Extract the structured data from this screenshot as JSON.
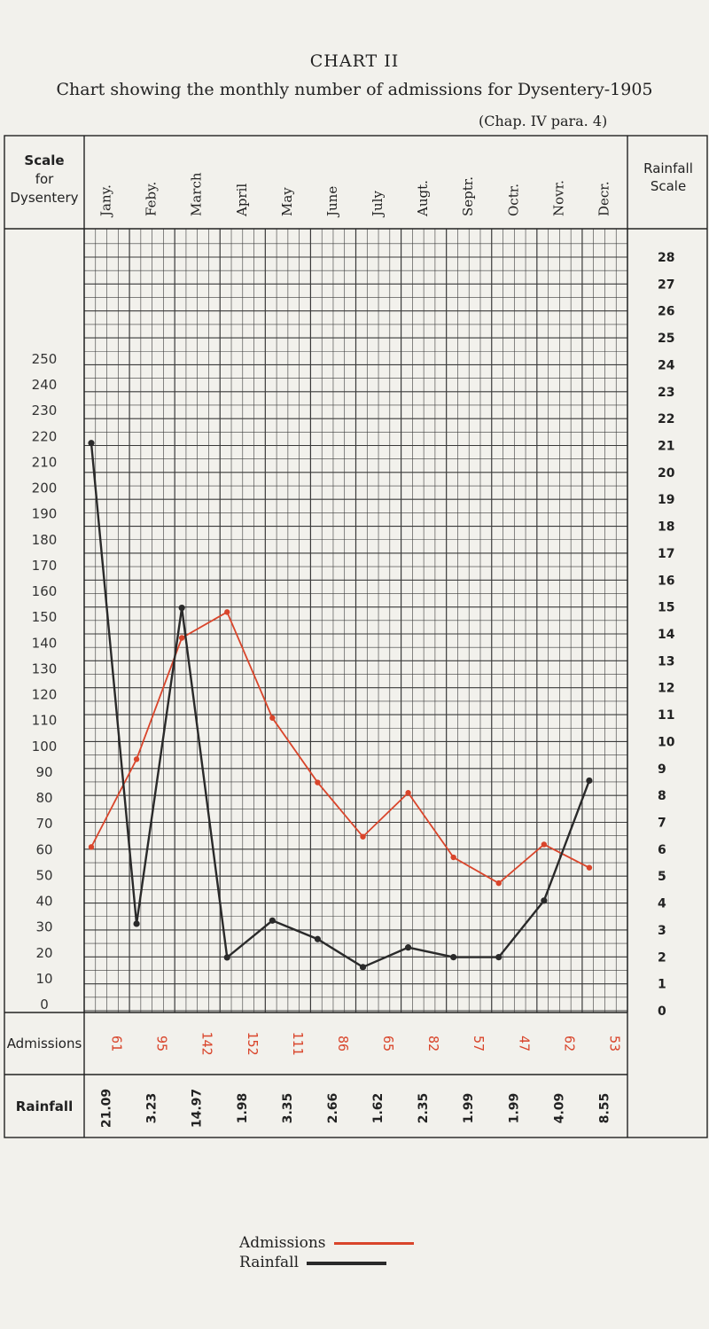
{
  "heading": "CHART II",
  "subtitle": "Chart showing the monthly number of admissions for Dysentery-1905",
  "reference": "(Chap. IV para. 4)",
  "left_header": [
    "Scale",
    "for",
    "Dysentery"
  ],
  "right_header": [
    "Rainfall",
    "Scale"
  ],
  "row_labels": {
    "admissions": "Admissions",
    "rainfall": "Rainfall"
  },
  "legend": {
    "admissions": "Admissions",
    "rainfall": "Rainfall"
  },
  "colors": {
    "admissions": "#d9452b",
    "rainfall": "#2a2a2a",
    "grid": "#3a3a3a",
    "paper": "#f2f1ec"
  },
  "chart_data": {
    "type": "line",
    "categories": [
      "Jany.",
      "Feby.",
      "March",
      "April",
      "May",
      "June",
      "July",
      "Augt.",
      "Septr.",
      "Octr.",
      "Novr.",
      "Decr."
    ],
    "left_axis": {
      "label": "Scale for Dysentery",
      "range": [
        0,
        250
      ],
      "ticks": [
        0,
        10,
        20,
        30,
        40,
        50,
        60,
        70,
        80,
        90,
        100,
        110,
        120,
        130,
        140,
        150,
        160,
        170,
        180,
        190,
        200,
        210,
        220,
        230,
        240,
        250
      ]
    },
    "right_axis": {
      "label": "Rainfall Scale",
      "range": [
        0,
        28
      ],
      "ticks": [
        0,
        1,
        2,
        3,
        4,
        5,
        6,
        7,
        8,
        9,
        10,
        11,
        12,
        13,
        14,
        15,
        16,
        17,
        18,
        19,
        20,
        21,
        22,
        23,
        24,
        25,
        26,
        27,
        28
      ]
    },
    "admissions_labels": [
      "61",
      "95",
      "142",
      "152",
      "111",
      "86",
      "65",
      "82",
      "57",
      "47",
      "62",
      "53"
    ],
    "rainfall_labels": [
      "21.09",
      "3.23",
      "14.97",
      "1.98",
      "3.35",
      "2.66",
      "1.62",
      "2.35",
      "1.99",
      "1.99",
      "4.09",
      "8.55"
    ],
    "series": [
      {
        "name": "Admissions",
        "axis": "left",
        "points": [
          {
            "x": "Jany.",
            "sub": 0,
            "y": 61
          },
          {
            "x": "Feby.",
            "sub": 0,
            "y": 95
          },
          {
            "x": "March",
            "sub": 0,
            "y": 142
          },
          {
            "x": "April",
            "sub": 0,
            "y": 152
          },
          {
            "x": "May",
            "sub": 0,
            "y": 111
          },
          {
            "x": "June",
            "sub": 0,
            "y": 86
          },
          {
            "x": "July",
            "sub": 0,
            "y": 65
          },
          {
            "x": "Augt.",
            "sub": 0,
            "y": 82
          },
          {
            "x": "Septr.",
            "sub": 0,
            "y": 57
          },
          {
            "x": "Octr.",
            "sub": 0,
            "y": 47
          },
          {
            "x": "Novr.",
            "sub": 0,
            "y": 62
          },
          {
            "x": "Decr.",
            "sub": 0,
            "y": 53
          }
        ]
      },
      {
        "name": "Rainfall",
        "axis": "right",
        "points": [
          {
            "x": "Jany.",
            "sub": 0,
            "y": 21.09
          },
          {
            "x": "Feby.",
            "sub": 0,
            "y": 3.23
          },
          {
            "x": "March",
            "sub": 0,
            "y": 14.97
          },
          {
            "x": "April",
            "sub": 0,
            "y": 1.98
          },
          {
            "x": "May",
            "sub": 0,
            "y": 3.35
          },
          {
            "x": "June",
            "sub": 0,
            "y": 2.66
          },
          {
            "x": "July",
            "sub": 0,
            "y": 1.62
          },
          {
            "x": "Augt.",
            "sub": 0,
            "y": 2.35
          },
          {
            "x": "Septr.",
            "sub": 0,
            "y": 1.99
          },
          {
            "x": "Octr.",
            "sub": 0,
            "y": 1.99
          },
          {
            "x": "Novr.",
            "sub": 0,
            "y": 4.09
          },
          {
            "x": "Decr.",
            "sub": 0,
            "y": 8.55
          }
        ]
      }
    ],
    "grid": true
  }
}
